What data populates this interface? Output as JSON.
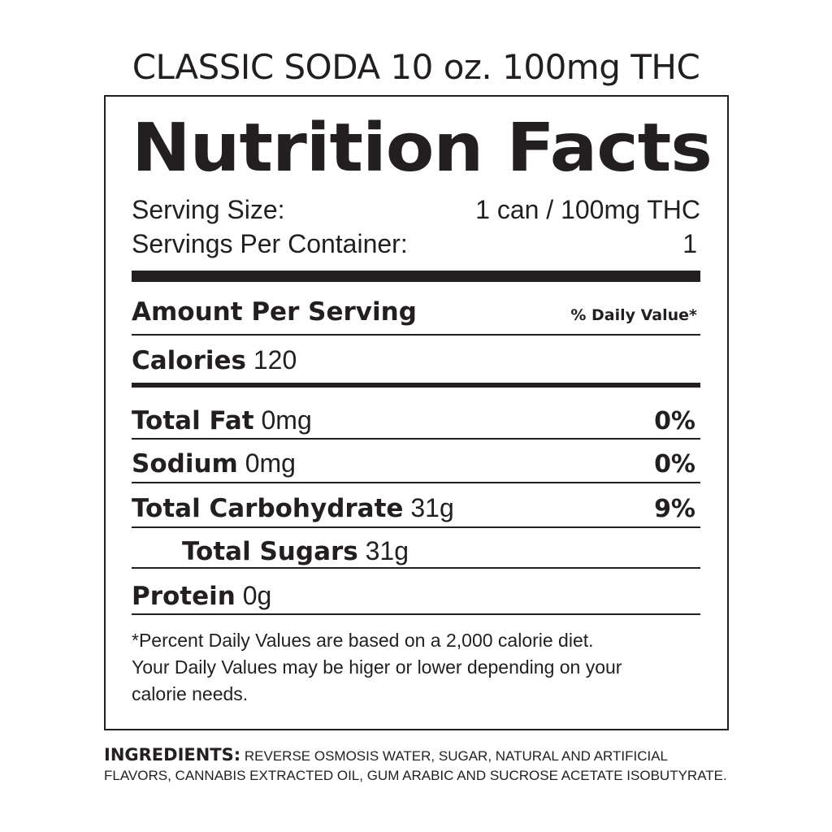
{
  "product_title": "CLASSIC SODA 10 oz. 100mg THC",
  "label": {
    "heading": "Nutrition Facts",
    "serving_size": {
      "label": "Serving Size:",
      "value": "1 can / 100mg THC"
    },
    "servings_per_container": {
      "label": "Servings Per Container:",
      "value": "1"
    },
    "amount_per_serving": "Amount Per Serving",
    "daily_value_header": "% Daily Value*",
    "calories": {
      "label": "Calories",
      "value": "120"
    },
    "nutrients": [
      {
        "name": "Total Fat",
        "amount": "0mg",
        "dv": "0%"
      },
      {
        "name": "Sodium",
        "amount": "0mg",
        "dv": "0%"
      },
      {
        "name": "Total Carbohydrate",
        "amount": "31g",
        "dv": "9%"
      },
      {
        "name": "Total Sugars",
        "amount": "31g",
        "dv": ""
      },
      {
        "name": "Protein",
        "amount": "0g",
        "dv": ""
      }
    ],
    "footnote": [
      "*Percent Daily Values are based on a 2,000 calorie diet.",
      "Your Daily Values may be higer or lower depending on your",
      "calorie needs."
    ]
  },
  "ingredients": {
    "heading": "INGREDIENTS:",
    "line1": "REVERSE OSMOSIS WATER, SUGAR, NATURAL AND ARTIFICIAL",
    "line2": "FLAVORS, CANNABIS EXTRACTED OIL, GUM ARABIC AND SUCROSE ACETATE ISOBUTYRATE."
  }
}
